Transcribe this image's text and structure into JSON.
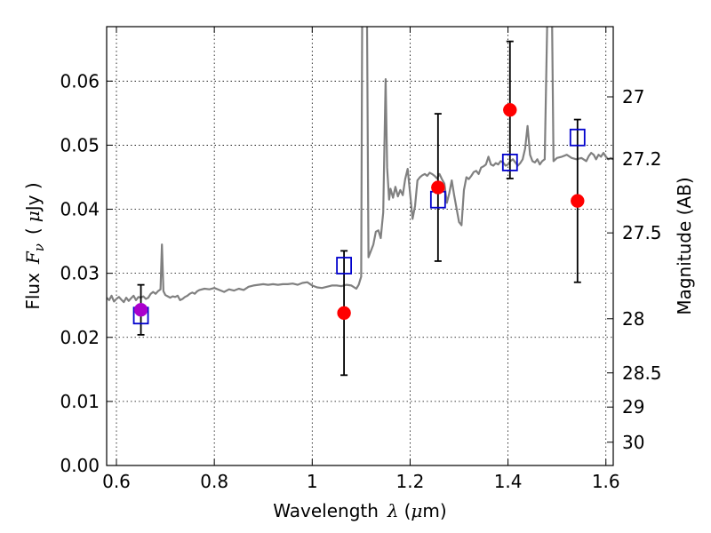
{
  "chart_data": {
    "type": "scatter",
    "xlabel": "Wavelength",
    "xlabel_symbol": "λ",
    "xlabel_unit_prefix": "(",
    "xlabel_unit_mu": "μ",
    "xlabel_unit_rest": "m)",
    "ylabel": "Flux",
    "ylabel_symbol": "F",
    "ylabel_subscript": "ν",
    "ylabel_unit_prefix": "(",
    "ylabel_unit_mu": "μ",
    "ylabel_unit_rest": "Jy )",
    "y2label": "Magnitude (AB)",
    "xlim": [
      0.58,
      1.615
    ],
    "ylim": [
      0.0,
      0.0685
    ],
    "grid": true,
    "x_ticks": [
      0.6,
      0.8,
      1.0,
      1.2,
      1.4,
      1.6
    ],
    "x_tick_labels": [
      "0.6",
      "0.8",
      "1",
      "1.2",
      "1.4",
      "1.6"
    ],
    "y_ticks": [
      0.0,
      0.01,
      0.02,
      0.03,
      0.04,
      0.05,
      0.06
    ],
    "y_tick_labels": [
      "0.00",
      "0.01",
      "0.02",
      "0.03",
      "0.04",
      "0.05",
      "0.06"
    ],
    "y2_ticks": [
      27,
      27.2,
      27.5,
      28,
      28.5,
      29,
      30
    ],
    "y2_tick_labels": [
      "27",
      "27.2",
      "27.5",
      "28",
      "28.5",
      "29",
      "30"
    ],
    "colors": {
      "spectrum": "#808080",
      "observed": "#ff0000",
      "model": "#0000cc",
      "overlap": "#aa00cc",
      "errorbar": "#000000"
    },
    "observed_points": [
      {
        "x": 0.65,
        "y": 0.0243,
        "yerr": 0.0039
      },
      {
        "x": 1.065,
        "y": 0.0238,
        "yerr": 0.0097
      },
      {
        "x": 1.257,
        "y": 0.0434,
        "yerr": 0.0115
      },
      {
        "x": 1.404,
        "y": 0.0555,
        "yerr": 0.0107
      },
      {
        "x": 1.542,
        "y": 0.0413,
        "yerr": 0.0127
      }
    ],
    "model_points": [
      {
        "x": 0.65,
        "y": 0.0234
      },
      {
        "x": 1.065,
        "y": 0.0312
      },
      {
        "x": 1.257,
        "y": 0.0415
      },
      {
        "x": 1.404,
        "y": 0.0473
      },
      {
        "x": 1.542,
        "y": 0.0512
      }
    ],
    "spectrum": [
      [
        0.58,
        0.0262
      ],
      [
        0.585,
        0.0258
      ],
      [
        0.59,
        0.0265
      ],
      [
        0.595,
        0.0256
      ],
      [
        0.6,
        0.026
      ],
      [
        0.605,
        0.0263
      ],
      [
        0.61,
        0.0259
      ],
      [
        0.615,
        0.0255
      ],
      [
        0.62,
        0.0262
      ],
      [
        0.625,
        0.0257
      ],
      [
        0.63,
        0.0261
      ],
      [
        0.635,
        0.0265
      ],
      [
        0.64,
        0.0258
      ],
      [
        0.645,
        0.0263
      ],
      [
        0.65,
        0.0262
      ],
      [
        0.655,
        0.0264
      ],
      [
        0.66,
        0.026
      ],
      [
        0.665,
        0.0262
      ],
      [
        0.67,
        0.0268
      ],
      [
        0.675,
        0.0271
      ],
      [
        0.68,
        0.0268
      ],
      [
        0.685,
        0.0272
      ],
      [
        0.69,
        0.0275
      ],
      [
        0.693,
        0.0345
      ],
      [
        0.696,
        0.0272
      ],
      [
        0.7,
        0.0266
      ],
      [
        0.705,
        0.0264
      ],
      [
        0.71,
        0.0262
      ],
      [
        0.715,
        0.0264
      ],
      [
        0.72,
        0.0263
      ],
      [
        0.725,
        0.0265
      ],
      [
        0.73,
        0.0258
      ],
      [
        0.735,
        0.026
      ],
      [
        0.74,
        0.0263
      ],
      [
        0.745,
        0.0265
      ],
      [
        0.75,
        0.0268
      ],
      [
        0.755,
        0.027
      ],
      [
        0.76,
        0.0268
      ],
      [
        0.765,
        0.0272
      ],
      [
        0.77,
        0.0274
      ],
      [
        0.78,
        0.0276
      ],
      [
        0.79,
        0.0275
      ],
      [
        0.8,
        0.0277
      ],
      [
        0.81,
        0.0274
      ],
      [
        0.82,
        0.0271
      ],
      [
        0.83,
        0.0275
      ],
      [
        0.84,
        0.0273
      ],
      [
        0.85,
        0.0276
      ],
      [
        0.86,
        0.0274
      ],
      [
        0.87,
        0.0279
      ],
      [
        0.88,
        0.0281
      ],
      [
        0.89,
        0.0282
      ],
      [
        0.9,
        0.0283
      ],
      [
        0.91,
        0.0282
      ],
      [
        0.92,
        0.0283
      ],
      [
        0.93,
        0.0282
      ],
      [
        0.94,
        0.0283
      ],
      [
        0.95,
        0.0283
      ],
      [
        0.96,
        0.0284
      ],
      [
        0.97,
        0.0282
      ],
      [
        0.98,
        0.0285
      ],
      [
        0.99,
        0.0286
      ],
      [
        1.0,
        0.0281
      ],
      [
        1.01,
        0.0278
      ],
      [
        1.02,
        0.0277
      ],
      [
        1.03,
        0.0279
      ],
      [
        1.04,
        0.0281
      ],
      [
        1.05,
        0.0281
      ],
      [
        1.06,
        0.028
      ],
      [
        1.07,
        0.0282
      ],
      [
        1.08,
        0.0281
      ],
      [
        1.09,
        0.0276
      ],
      [
        1.095,
        0.0282
      ],
      [
        1.1,
        0.0295
      ],
      [
        1.102,
        0.069
      ],
      [
        1.112,
        0.069
      ],
      [
        1.115,
        0.0325
      ],
      [
        1.12,
        0.0335
      ],
      [
        1.125,
        0.0345
      ],
      [
        1.13,
        0.0365
      ],
      [
        1.135,
        0.0367
      ],
      [
        1.14,
        0.0355
      ],
      [
        1.145,
        0.0395
      ],
      [
        1.15,
        0.0603
      ],
      [
        1.153,
        0.0465
      ],
      [
        1.157,
        0.0415
      ],
      [
        1.16,
        0.0432
      ],
      [
        1.165,
        0.0418
      ],
      [
        1.17,
        0.0435
      ],
      [
        1.175,
        0.042
      ],
      [
        1.18,
        0.043
      ],
      [
        1.185,
        0.0422
      ],
      [
        1.19,
        0.0447
      ],
      [
        1.195,
        0.0463
      ],
      [
        1.2,
        0.0425
      ],
      [
        1.205,
        0.0385
      ],
      [
        1.21,
        0.0405
      ],
      [
        1.215,
        0.0445
      ],
      [
        1.22,
        0.045
      ],
      [
        1.225,
        0.0453
      ],
      [
        1.23,
        0.0455
      ],
      [
        1.235,
        0.0452
      ],
      [
        1.24,
        0.0457
      ],
      [
        1.245,
        0.0455
      ],
      [
        1.25,
        0.0452
      ],
      [
        1.255,
        0.0448
      ],
      [
        1.26,
        0.0455
      ],
      [
        1.265,
        0.0447
      ],
      [
        1.27,
        0.044
      ],
      [
        1.275,
        0.041
      ],
      [
        1.28,
        0.0425
      ],
      [
        1.285,
        0.0445
      ],
      [
        1.29,
        0.0422
      ],
      [
        1.3,
        0.038
      ],
      [
        1.305,
        0.0375
      ],
      [
        1.31,
        0.043
      ],
      [
        1.315,
        0.045
      ],
      [
        1.32,
        0.0447
      ],
      [
        1.325,
        0.0452
      ],
      [
        1.33,
        0.0458
      ],
      [
        1.335,
        0.046
      ],
      [
        1.34,
        0.0455
      ],
      [
        1.345,
        0.0465
      ],
      [
        1.35,
        0.0467
      ],
      [
        1.355,
        0.047
      ],
      [
        1.36,
        0.0482
      ],
      [
        1.365,
        0.047
      ],
      [
        1.37,
        0.0468
      ],
      [
        1.375,
        0.0472
      ],
      [
        1.38,
        0.047
      ],
      [
        1.385,
        0.0475
      ],
      [
        1.39,
        0.0473
      ],
      [
        1.395,
        0.0468
      ],
      [
        1.4,
        0.047
      ],
      [
        1.405,
        0.0475
      ],
      [
        1.41,
        0.0478
      ],
      [
        1.415,
        0.0473
      ],
      [
        1.42,
        0.0468
      ],
      [
        1.425,
        0.0472
      ],
      [
        1.43,
        0.0478
      ],
      [
        1.435,
        0.0495
      ],
      [
        1.44,
        0.053
      ],
      [
        1.445,
        0.0485
      ],
      [
        1.45,
        0.0475
      ],
      [
        1.455,
        0.0473
      ],
      [
        1.46,
        0.0478
      ],
      [
        1.465,
        0.047
      ],
      [
        1.47,
        0.0475
      ],
      [
        1.475,
        0.0478
      ],
      [
        1.48,
        0.069
      ],
      [
        1.49,
        0.069
      ],
      [
        1.493,
        0.0475
      ],
      [
        1.5,
        0.048
      ],
      [
        1.51,
        0.0482
      ],
      [
        1.52,
        0.0485
      ],
      [
        1.53,
        0.048
      ],
      [
        1.54,
        0.0478
      ],
      [
        1.55,
        0.048
      ],
      [
        1.56,
        0.0475
      ],
      [
        1.565,
        0.0483
      ],
      [
        1.57,
        0.0488
      ],
      [
        1.575,
        0.0485
      ],
      [
        1.58,
        0.0478
      ],
      [
        1.585,
        0.0485
      ],
      [
        1.59,
        0.0482
      ],
      [
        1.595,
        0.0488
      ],
      [
        1.6,
        0.0482
      ],
      [
        1.605,
        0.0478
      ],
      [
        1.61,
        0.048
      ],
      [
        1.615,
        0.0478
      ]
    ]
  }
}
